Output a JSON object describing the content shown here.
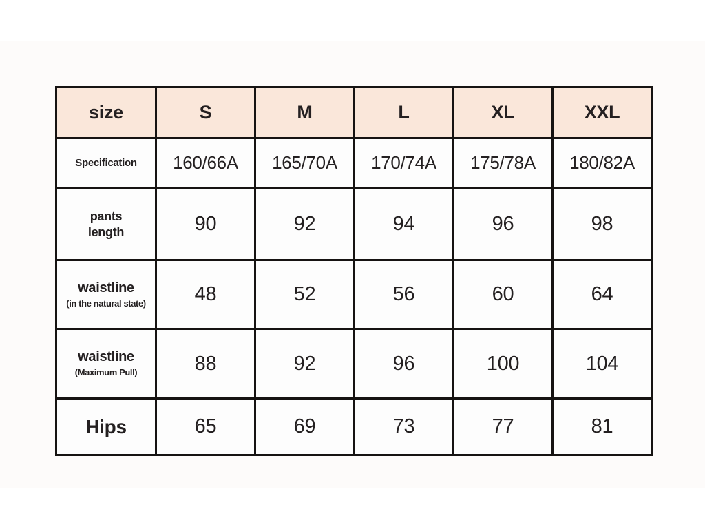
{
  "colors": {
    "header_bg": "#fae7da",
    "border": "#161312",
    "text": "#242021",
    "cell_bg": "#fdfdfd",
    "page_bg": "#fdfbfa"
  },
  "chart_data": {
    "type": "table",
    "title": "size",
    "columns": [
      "size",
      "S",
      "M",
      "L",
      "XL",
      "XXL"
    ],
    "rows": [
      {
        "label": "Specification",
        "values": [
          "160/66A",
          "165/70A",
          "170/74A",
          "175/78A",
          "180/82A"
        ]
      },
      {
        "label": "pants length",
        "values": [
          "90",
          "92",
          "94",
          "96",
          "98"
        ]
      },
      {
        "label": "waistline (in the natural state)",
        "values": [
          "48",
          "52",
          "56",
          "60",
          "64"
        ]
      },
      {
        "label": "waistline (Maximum Pull)",
        "values": [
          "88",
          "92",
          "96",
          "100",
          "104"
        ]
      },
      {
        "label": "Hips",
        "values": [
          "65",
          "69",
          "73",
          "77",
          "81"
        ]
      }
    ]
  },
  "display": {
    "corner_label": "size",
    "row_labels": [
      {
        "line1": "Specification",
        "line2": ""
      },
      {
        "line1": "pants",
        "line2": "length"
      },
      {
        "line1": "waistline",
        "line2": "(in the natural state)"
      },
      {
        "line1": "waistline",
        "line2": "(Maximum Pull)"
      },
      {
        "line1": "Hips",
        "line2": ""
      }
    ]
  }
}
